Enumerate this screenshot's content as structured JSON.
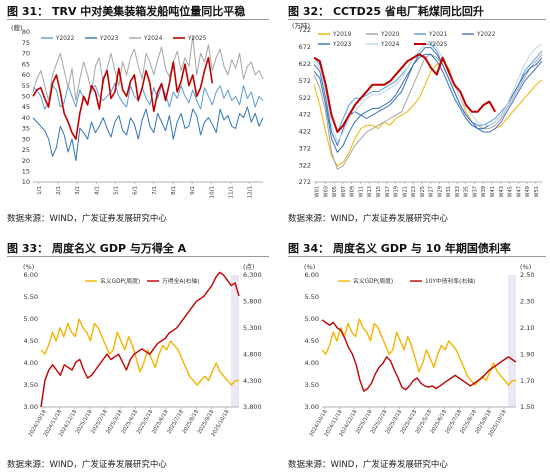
{
  "panels": [
    {
      "id": "p31",
      "title": "图 31： TRV 中对美集装箱发船吨位量同比平稳",
      "source": "数据来源：WIND，广发证券发展研究中心",
      "chart_data": {
        "type": "line",
        "unit_label": "(艘)",
        "ylim": [
          10,
          80
        ],
        "yticks": [
          10,
          15,
          20,
          25,
          30,
          35,
          40,
          45,
          50,
          55,
          60,
          65,
          70,
          75,
          80
        ],
        "xticks": [
          "1/1",
          "2/1",
          "3/1",
          "4/1",
          "5/1",
          "6/1",
          "7/1",
          "8/1",
          "9/1",
          "10/1",
          "11/1",
          "12/1"
        ],
        "legend": "top",
        "grid": false,
        "series": [
          {
            "name": "Y2022",
            "color": "#5b9bd5",
            "width": 1.0,
            "values": [
              54,
              53,
              50,
              44,
              47,
              55,
              53,
              45,
              47,
              55,
              50,
              45,
              53,
              49,
              46,
              54,
              55,
              50,
              48,
              50,
              52,
              56,
              50,
              47,
              45,
              55,
              50,
              48,
              54,
              49,
              46,
              54,
              49,
              55,
              51,
              45,
              52,
              49,
              55,
              50,
              47,
              53,
              48,
              44,
              54,
              50,
              46,
              52,
              55,
              49,
              53,
              48,
              50,
              46,
              55,
              49,
              52,
              45,
              50,
              48
            ]
          },
          {
            "name": "Y2023",
            "color": "#2e75b6",
            "width": 1.0,
            "values": [
              40,
              38,
              36,
              34,
              30,
              22,
              26,
              36,
              32,
              24,
              30,
              20,
              35,
              33,
              30,
              38,
              33,
              36,
              40,
              35,
              31,
              38,
              41,
              34,
              32,
              40,
              37,
              30,
              39,
              44,
              36,
              33,
              42,
              38,
              34,
              41,
              30,
              38,
              42,
              35,
              36,
              44,
              41,
              32,
              38,
              40,
              37,
              33,
              44,
              39,
              41,
              36,
              35,
              42,
              40,
              45,
              38,
              42,
              36,
              40
            ]
          },
          {
            "name": "Y2024",
            "color": "#a5a5a5",
            "width": 1.0,
            "values": [
              52,
              58,
              62,
              55,
              48,
              60,
              65,
              70,
              62,
              54,
              63,
              48,
              58,
              66,
              60,
              52,
              64,
              68,
              56,
              63,
              70,
              62,
              55,
              66,
              60,
              68,
              72,
              64,
              58,
              70,
              66,
              60,
              67,
              73,
              63,
              59,
              66,
              71,
              62,
              68,
              64,
              78,
              60,
              70,
              66,
              74,
              62,
              68,
              72,
              64,
              60,
              67,
              63,
              70,
              58,
              64,
              66,
              60,
              62,
              58
            ]
          },
          {
            "name": "Y2025",
            "color": "#c00000",
            "width": 1.6,
            "values": [
              50,
              53,
              54,
              49,
              45,
              56,
              60,
              52,
              42,
              38,
              33,
              30,
              42,
              50,
              46,
              55,
              52,
              44,
              58,
              62,
              49,
              52,
              63,
              53,
              50,
              57,
              60,
              48,
              54,
              62,
              56,
              43,
              52,
              56,
              48,
              56,
              66,
              52,
              57,
              65,
              55,
              60,
              50,
              54,
              62,
              68,
              56
            ]
          }
        ]
      }
    },
    {
      "id": "p32",
      "title": "图 32： CCTD25 省电厂耗煤同比回升",
      "source": "数据来源：WIND，广发证券发展研究中心",
      "chart_data": {
        "type": "line",
        "unit_label": "(万吨)",
        "ylim": [
          272,
          722
        ],
        "yticks": [
          272,
          322,
          372,
          422,
          472,
          522,
          572,
          622,
          672,
          722
        ],
        "xticks": [
          "W01",
          "W03",
          "W05",
          "W07",
          "W09",
          "W11",
          "W13",
          "W15",
          "W17",
          "W19",
          "W21",
          "W23",
          "W25",
          "W27",
          "W29",
          "W31",
          "W33",
          "W35",
          "W37",
          "W39",
          "W41",
          "W43",
          "W45",
          "W47",
          "W49",
          "W51"
        ],
        "legend": "top",
        "grid": false,
        "series": [
          {
            "name": "Y2019",
            "color": "#f4b400",
            "width": 1.0,
            "values": [
              560,
              500,
              420,
              350,
              320,
              330,
              360,
              400,
              430,
              440,
              440,
              430,
              450,
              440,
              460,
              470,
              480,
              500,
              520,
              560,
              600,
              620,
              630,
              610,
              560,
              520,
              480,
              450,
              430,
              420,
              420,
              430,
              440,
              460,
              480,
              500,
              520,
              540,
              560,
              575
            ]
          },
          {
            "name": "Y2020",
            "color": "#a5a5a5",
            "width": 1.0,
            "values": [
              590,
              550,
              480,
              360,
              310,
              320,
              350,
              380,
              400,
              420,
              430,
              440,
              450,
              460,
              470,
              480,
              520,
              560,
              600,
              640,
              650,
              640,
              620,
              580,
              540,
              500,
              470,
              450,
              440,
              430,
              430,
              440,
              460,
              490,
              520,
              550,
              580,
              610,
              630,
              650
            ]
          },
          {
            "name": "Y2021",
            "color": "#5b9bd5",
            "width": 1.0,
            "values": [
              640,
              620,
              560,
              470,
              420,
              460,
              500,
              520,
              520,
              530,
              540,
              540,
              550,
              560,
              570,
              590,
              610,
              640,
              660,
              680,
              680,
              660,
              620,
              580,
              540,
              500,
              470,
              450,
              440,
              440,
              450,
              460,
              480,
              500,
              530,
              560,
              600,
              620,
              640,
              660
            ]
          },
          {
            "name": "Y2022",
            "color": "#4472c4",
            "width": 1.0,
            "values": [
              620,
              600,
              520,
              420,
              380,
              430,
              470,
              480,
              470,
              460,
              470,
              480,
              490,
              500,
              520,
              540,
              580,
              620,
              650,
              670,
              670,
              650,
              620,
              580,
              540,
              500,
              470,
              450,
              430,
              420,
              420,
              430,
              450,
              480,
              510,
              540,
              570,
              590,
              610,
              630
            ]
          },
          {
            "name": "Y2023",
            "color": "#2e75b6",
            "width": 1.0,
            "values": [
              600,
              580,
              500,
              400,
              360,
              380,
              420,
              450,
              470,
              480,
              490,
              490,
              500,
              510,
              530,
              560,
              590,
              620,
              640,
              650,
              650,
              630,
              600,
              560,
              520,
              490,
              460,
              440,
              430,
              430,
              440,
              450,
              470,
              500,
              530,
              560,
              590,
              610,
              620,
              640
            ]
          },
          {
            "name": "Y2024",
            "color": "#bdd7ee",
            "width": 1.0,
            "values": [
              630,
              610,
              540,
              440,
              390,
              420,
              460,
              480,
              500,
              520,
              530,
              530,
              540,
              550,
              560,
              580,
              610,
              640,
              660,
              680,
              690,
              670,
              640,
              600,
              560,
              520,
              490,
              470,
              450,
              440,
              440,
              450,
              470,
              500,
              540,
              580,
              620,
              650,
              670,
              680
            ]
          },
          {
            "name": "Y2025",
            "color": "#c00000",
            "width": 2.0,
            "values": [
              640,
              630,
              560,
              470,
              420,
              440,
              470,
              500,
              520,
              540,
              560,
              560,
              560,
              570,
              590,
              610,
              630,
              640,
              650,
              640,
              610,
              590,
              640,
              600,
              560,
              540,
              500,
              480,
              480,
              500,
              510,
              480
            ]
          }
        ]
      }
    },
    {
      "id": "p33",
      "title": "图 33： 周度名义 GDP 与万得全 A",
      "source": "数据来源：WIND，广发证券发展研究中心",
      "chart_data": {
        "type": "line",
        "left_unit": "(%)",
        "right_unit": "(点)",
        "ylim": [
          3.0,
          6.0
        ],
        "yticks": [
          3.0,
          3.5,
          4.0,
          4.5,
          5.0,
          5.5,
          6.0
        ],
        "y2lim": [
          3800,
          6300
        ],
        "y2ticks": [
          3800,
          4300,
          4800,
          5300,
          5800,
          6300
        ],
        "xticks": [
          "2024/10/18",
          "2024/11/18",
          "2024/12/18",
          "2025/1/18",
          "2025/2/18",
          "2025/3/18",
          "2025/4/18",
          "2025/5/18",
          "2025/6/18",
          "2025/7/18",
          "2025/8/18",
          "2025/9/18",
          "2025/10/18"
        ],
        "legend": "top",
        "grid": false,
        "series": [
          {
            "name": "名义GDP(周度)",
            "color": "#f4b400",
            "width": 1.4,
            "axis": "left",
            "values": [
              4.3,
              4.2,
              4.4,
              4.7,
              4.5,
              4.8,
              4.6,
              4.9,
              4.7,
              4.6,
              5.0,
              4.8,
              4.7,
              4.5,
              4.9,
              4.8,
              4.6,
              4.4,
              4.2,
              4.3,
              4.7,
              4.5,
              4.3,
              4.6,
              4.4,
              4.1,
              3.8,
              4.0,
              4.3,
              4.1,
              3.9,
              4.2,
              4.4,
              4.3,
              4.5,
              4.4,
              4.3,
              4.1,
              3.9,
              3.7,
              3.6,
              3.5,
              3.6,
              3.7,
              3.6,
              3.8,
              4.0,
              3.8,
              3.7,
              3.6,
              3.5,
              3.6,
              3.6
            ]
          },
          {
            "name": "万得全A(右轴)",
            "color": "#c00000",
            "width": 1.4,
            "axis": "right",
            "values": [
              3800,
              4300,
              4500,
              4600,
              4500,
              4400,
              4600,
              4550,
              4500,
              4650,
              4700,
              4500,
              4350,
              4400,
              4500,
              4600,
              4700,
              4800,
              4700,
              4750,
              4800,
              4650,
              4500,
              4700,
              4800,
              4850,
              4900,
              4850,
              4800,
              4900,
              5000,
              5050,
              5100,
              5200,
              5250,
              5300,
              5400,
              5500,
              5600,
              5700,
              5800,
              5850,
              5900,
              6000,
              6100,
              6250,
              6350,
              6300,
              6200,
              6100,
              6150,
              5900
            ]
          }
        ]
      }
    },
    {
      "id": "p34",
      "title": "图 34： 周度名义 GDP 与 10 年期国债利率",
      "source": "数据来源：WIND，广发证券发展研究中心",
      "chart_data": {
        "type": "line",
        "left_unit": "(%)",
        "right_unit": "(%)",
        "ylim": [
          3.0,
          6.0
        ],
        "yticks": [
          3.0,
          3.5,
          4.0,
          4.5,
          5.0,
          5.5,
          6.0
        ],
        "y2lim": [
          1.5,
          2.5
        ],
        "y2ticks": [
          1.5,
          1.7,
          1.9,
          2.1,
          2.3,
          2.5
        ],
        "xticks": [
          "2024/10/18",
          "2024/11/18",
          "2024/12/18",
          "2025/1/18",
          "2025/2/18",
          "2025/3/18",
          "2025/4/18",
          "2025/5/18",
          "2025/6/18",
          "2025/7/18",
          "2025/8/18",
          "2025/9/18",
          "2025/10/18"
        ],
        "legend": "top",
        "grid": false,
        "series": [
          {
            "name": "名义GDP(周度)",
            "color": "#f4b400",
            "width": 1.4,
            "axis": "left",
            "values": [
              4.3,
              4.2,
              4.4,
              4.7,
              4.5,
              4.8,
              4.6,
              4.9,
              4.7,
              4.6,
              5.0,
              4.8,
              4.7,
              4.5,
              4.9,
              4.8,
              4.6,
              4.4,
              4.2,
              4.3,
              4.7,
              4.5,
              4.3,
              4.6,
              4.4,
              4.1,
              3.8,
              4.0,
              4.3,
              4.1,
              3.9,
              4.2,
              4.4,
              4.3,
              4.5,
              4.4,
              4.3,
              4.1,
              3.9,
              3.7,
              3.6,
              3.5,
              3.6,
              3.7,
              3.6,
              3.8,
              4.0,
              3.8,
              3.7,
              3.6,
              3.5,
              3.6,
              3.6
            ]
          },
          {
            "name": "10Y中债利率(右轴)",
            "color": "#c00000",
            "width": 1.4,
            "axis": "right",
            "values": [
              2.16,
              2.14,
              2.12,
              2.14,
              2.1,
              2.08,
              2.02,
              1.95,
              1.9,
              1.82,
              1.7,
              1.62,
              1.64,
              1.68,
              1.75,
              1.8,
              1.83,
              1.88,
              1.85,
              1.78,
              1.72,
              1.65,
              1.63,
              1.66,
              1.7,
              1.72,
              1.68,
              1.66,
              1.65,
              1.66,
              1.64,
              1.66,
              1.68,
              1.7,
              1.72,
              1.74,
              1.72,
              1.7,
              1.68,
              1.66,
              1.68,
              1.7,
              1.72,
              1.75,
              1.78,
              1.8,
              1.82,
              1.84,
              1.86,
              1.88,
              1.86,
              1.84
            ]
          }
        ]
      }
    }
  ]
}
